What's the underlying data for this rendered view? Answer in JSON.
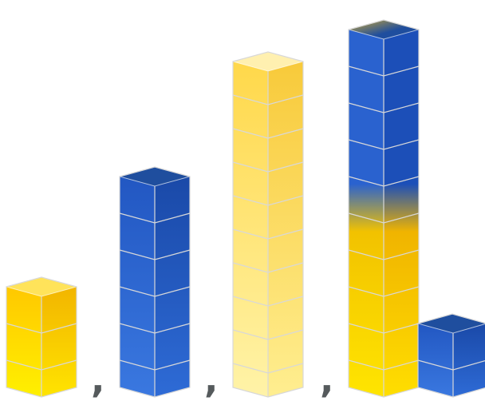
{
  "colors": {
    "yellow_front": "#ffd21a",
    "yellow_side": "#f7b800",
    "yellow_top": "#ffe35a",
    "pale_yellow_front": "#ffe27a",
    "pale_yellow_side": "#fdd55a",
    "pale_yellow_top": "#fff0b0",
    "blue_front": "#2a62cf",
    "blue_side": "#1c4fb8",
    "blue_top": "#1f4e9e",
    "grid_line": "#d8d8d8",
    "comma": "#555a5c"
  },
  "stacks": [
    {
      "name": "yellow-stack-3",
      "cubes": 3,
      "style": "yellow"
    },
    {
      "name": "blue-stack-6",
      "cubes": 6,
      "style": "blue"
    },
    {
      "name": "pale-yellow-stack-10",
      "cubes": 10,
      "style": "pale-yellow"
    },
    {
      "name": "mixed-stack-10",
      "cubes": 10,
      "style": "mixed",
      "blue_cubes_top": 5,
      "yellow_cubes_bottom": 5
    },
    {
      "name": "blue-stack-2",
      "cubes": 2,
      "style": "blue"
    }
  ],
  "separators": [
    ",",
    ",",
    ","
  ]
}
